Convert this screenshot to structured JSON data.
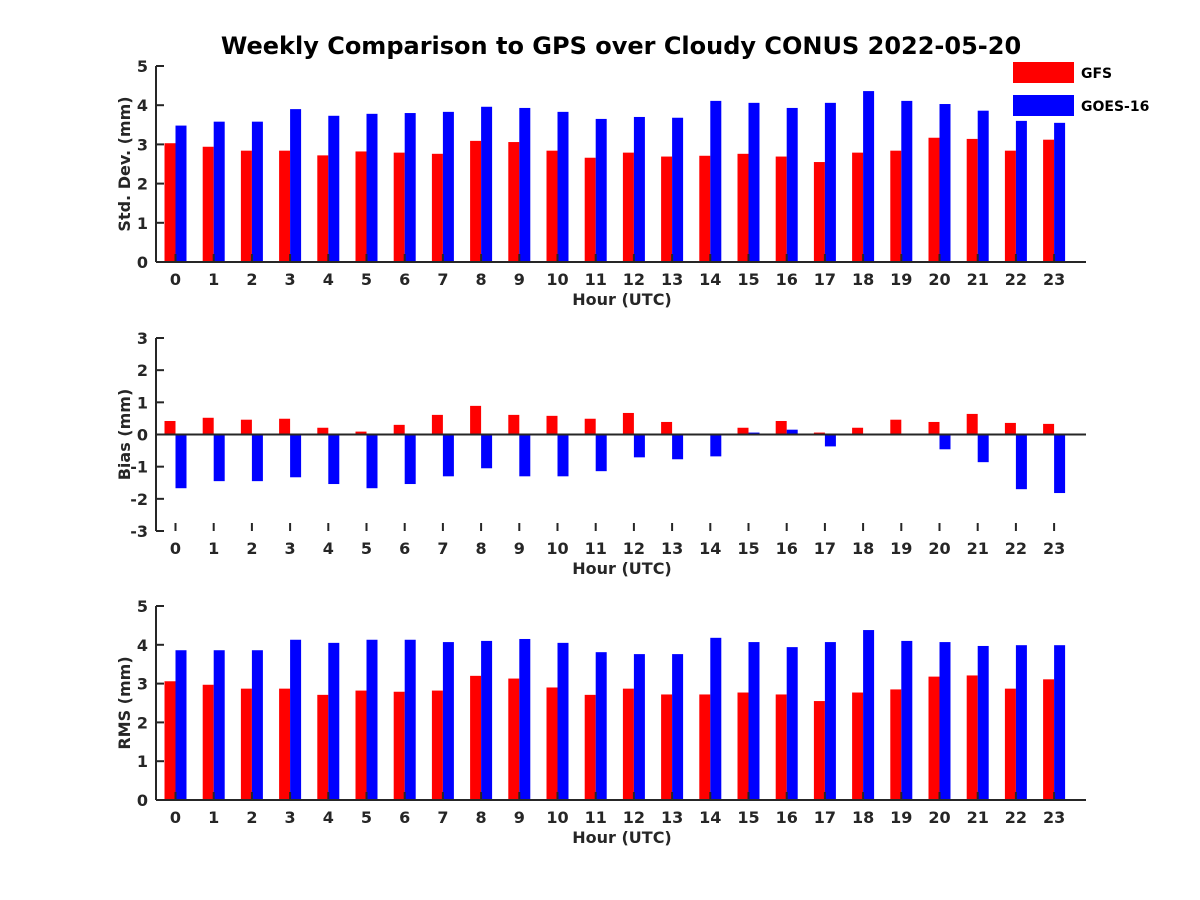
{
  "title": "Weekly Comparison to GPS over Cloudy CONUS 2022-05-20",
  "colors": {
    "GFS": "#ff0000",
    "GOES-16": "#0000ff",
    "axis": "#262626"
  },
  "legend": {
    "placement": "top-right",
    "items": [
      "GFS",
      "GOES-16"
    ]
  },
  "chart_data": [
    {
      "type": "bar",
      "xlabel": "Hour (UTC)",
      "ylabel": "Std. Dev. (mm)",
      "ylim": [
        0,
        5
      ],
      "yticks": [
        0,
        1,
        2,
        3,
        4,
        5
      ],
      "categories": [
        0,
        1,
        2,
        3,
        4,
        5,
        6,
        7,
        8,
        9,
        10,
        11,
        12,
        13,
        14,
        15,
        16,
        17,
        18,
        19,
        20,
        21,
        22,
        23
      ],
      "series": [
        {
          "name": "GFS",
          "values": [
            3.03,
            2.94,
            2.84,
            2.84,
            2.72,
            2.82,
            2.79,
            2.76,
            3.09,
            3.06,
            2.84,
            2.66,
            2.79,
            2.69,
            2.71,
            2.76,
            2.69,
            2.55,
            2.79,
            2.84,
            3.17,
            3.14,
            2.84,
            3.12
          ]
        },
        {
          "name": "GOES-16",
          "values": [
            3.48,
            3.58,
            3.58,
            3.9,
            3.73,
            3.78,
            3.8,
            3.83,
            3.96,
            3.93,
            3.83,
            3.65,
            3.7,
            3.68,
            4.11,
            4.06,
            3.93,
            4.06,
            4.36,
            4.11,
            4.03,
            3.86,
            3.6,
            3.55
          ]
        }
      ]
    },
    {
      "type": "bar",
      "xlabel": "Hour (UTC)",
      "ylabel": "Bias (mm)",
      "ylim": [
        -3,
        3
      ],
      "yticks": [
        -3,
        -2,
        -1,
        0,
        1,
        2,
        3
      ],
      "categories": [
        0,
        1,
        2,
        3,
        4,
        5,
        6,
        7,
        8,
        9,
        10,
        11,
        12,
        13,
        14,
        15,
        16,
        17,
        18,
        19,
        20,
        21,
        22,
        23
      ],
      "series": [
        {
          "name": "GFS",
          "values": [
            0.42,
            0.52,
            0.46,
            0.49,
            0.21,
            0.09,
            0.3,
            0.61,
            0.89,
            0.61,
            0.58,
            0.49,
            0.67,
            0.39,
            0.03,
            0.21,
            0.42,
            0.06,
            0.21,
            0.46,
            0.39,
            0.64,
            0.36,
            0.33
          ]
        },
        {
          "name": "GOES-16",
          "values": [
            -1.67,
            -1.45,
            -1.45,
            -1.33,
            -1.54,
            -1.67,
            -1.54,
            -1.3,
            -1.05,
            -1.3,
            -1.3,
            -1.14,
            -0.71,
            -0.77,
            -0.68,
            0.06,
            0.15,
            -0.37,
            0.03,
            -0.03,
            -0.46,
            -0.86,
            -1.7,
            -1.82
          ]
        }
      ]
    },
    {
      "type": "bar",
      "xlabel": "Hour (UTC)",
      "ylabel": "RMS (mm)",
      "ylim": [
        0,
        5
      ],
      "yticks": [
        0,
        1,
        2,
        3,
        4,
        5
      ],
      "categories": [
        0,
        1,
        2,
        3,
        4,
        5,
        6,
        7,
        8,
        9,
        10,
        11,
        12,
        13,
        14,
        15,
        16,
        17,
        18,
        19,
        20,
        21,
        22,
        23
      ],
      "series": [
        {
          "name": "GFS",
          "values": [
            3.06,
            2.97,
            2.87,
            2.87,
            2.71,
            2.82,
            2.79,
            2.82,
            3.2,
            3.13,
            2.9,
            2.71,
            2.87,
            2.72,
            2.72,
            2.77,
            2.72,
            2.55,
            2.77,
            2.85,
            3.18,
            3.21,
            2.87,
            3.11
          ]
        },
        {
          "name": "GOES-16",
          "values": [
            3.86,
            3.86,
            3.86,
            4.13,
            4.05,
            4.13,
            4.13,
            4.07,
            4.1,
            4.15,
            4.05,
            3.81,
            3.76,
            3.76,
            4.18,
            4.07,
            3.94,
            4.07,
            4.38,
            4.1,
            4.07,
            3.97,
            3.99,
            3.99
          ]
        }
      ]
    }
  ]
}
